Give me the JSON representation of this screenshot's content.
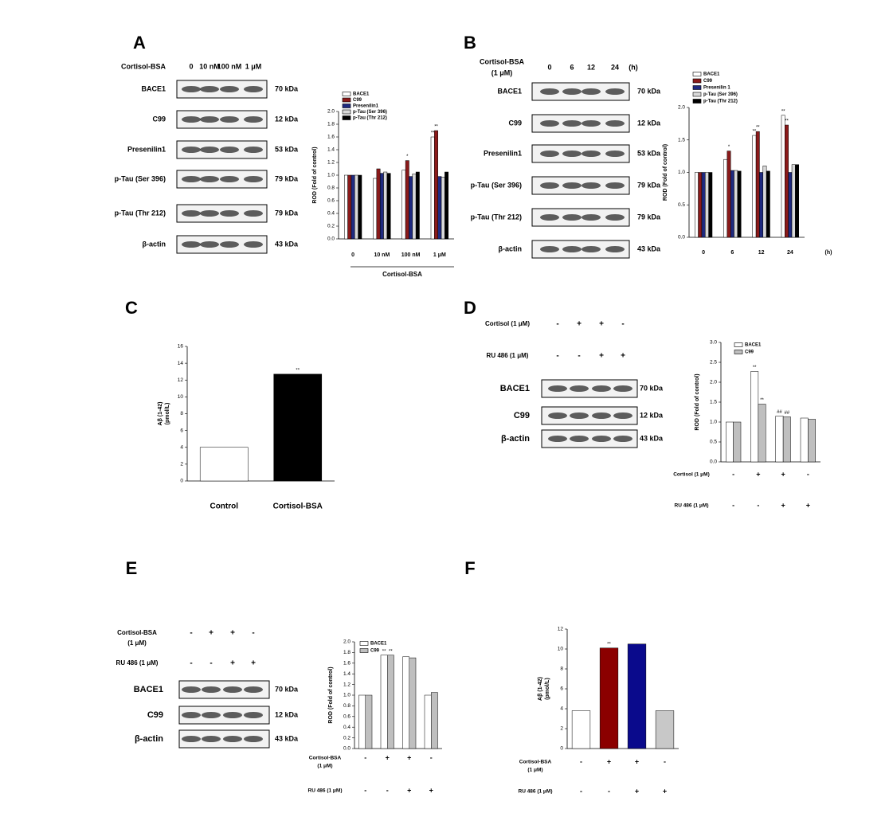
{
  "panel_labels": [
    "A",
    "B",
    "C",
    "D",
    "E",
    "F"
  ],
  "blots": [
    {
      "header": [
        "Cortisol-BSA"
      ],
      "lanes": [
        "0",
        "10 nM",
        "100 nM",
        "1 μM"
      ],
      "rows": [
        {
          "protein": "BACE1",
          "kda": "70 kDa"
        },
        {
          "protein": "C99",
          "kda": "12 kDa"
        },
        {
          "protein": "Presenilin1",
          "kda": "53 kDa"
        },
        {
          "protein": "p-Tau (Ser 396)",
          "kda": "79 kDa"
        },
        {
          "protein": "p-Tau (Thr 212)",
          "kda": "79 kDa"
        },
        {
          "protein": "β-actin",
          "kda": "43 kDa"
        }
      ]
    },
    {
      "header": [
        "Cortisol-BSA",
        "(1 μM)"
      ],
      "lanes": [
        "0",
        "6",
        "12",
        "24"
      ],
      "unit": "(h)",
      "rows": [
        {
          "protein": "BACE1",
          "kda": "70 kDa"
        },
        {
          "protein": "C99",
          "kda": "12 kDa"
        },
        {
          "protein": "Presenilin1",
          "kda": "53 kDa"
        },
        {
          "protein": "p-Tau (Ser 396)",
          "kda": "79 kDa"
        },
        {
          "protein": "p-Tau (Thr 212)",
          "kda": "79 kDa"
        },
        {
          "protein": "β-actin",
          "kda": "43 kDa"
        }
      ]
    },
    {
      "conditions": [
        {
          "label": [
            "Cortisol (1 μM)"
          ],
          "signs": [
            "-",
            "+",
            "+",
            "-"
          ]
        },
        {
          "label": [
            "RU 486 (1 μM)"
          ],
          "signs": [
            "-",
            "-",
            "+",
            "+"
          ]
        }
      ],
      "rows": [
        {
          "protein": "BACE1",
          "kda": "70 kDa"
        },
        {
          "protein": "C99",
          "kda": "12 kDa"
        },
        {
          "protein": "β-actin",
          "kda": "43 kDa"
        }
      ]
    },
    {
      "conditions": [
        {
          "label": [
            "Cortisol-BSA",
            "(1 μM)"
          ],
          "signs": [
            "-",
            "+",
            "+",
            "-"
          ]
        },
        {
          "label": [
            "RU 486 (1 μM)"
          ],
          "signs": [
            "-",
            "-",
            "+",
            "+"
          ]
        }
      ],
      "rows": [
        {
          "protein": "BACE1",
          "kda": "70 kDa"
        },
        {
          "protein": "C99",
          "kda": "12 kDa"
        },
        {
          "protein": "β-actin",
          "kda": "43 kDa"
        }
      ]
    }
  ],
  "chart_data": [
    {
      "type": "bar",
      "y_label": [
        "ROD (Fold of control)"
      ],
      "x_label": "Cortisol-BSA",
      "categories": [
        "0",
        "10 nM",
        "100 nM",
        "1 μM"
      ],
      "ylim": [
        0,
        2.0
      ],
      "yticks": [
        {
          "value": 0,
          "label": "0.0"
        },
        0.2,
        0.4,
        0.6,
        0.8,
        {
          "value": 1,
          "label": "1.0"
        },
        1.2,
        1.4,
        1.6,
        1.8,
        {
          "value": 2,
          "label": "2.0"
        }
      ],
      "series": [
        {
          "name": "BACE1",
          "color": "#ffffff",
          "values": [
            1.0,
            0.95,
            1.08,
            1.6
          ],
          "significance": [
            null,
            null,
            null,
            "**"
          ]
        },
        {
          "name": "C99",
          "color": "#8b1a1a",
          "values": [
            1.0,
            1.1,
            1.23,
            1.7
          ],
          "significance": [
            null,
            null,
            "*",
            "**"
          ]
        },
        {
          "name": "Presenilin1",
          "color": "#1f2a80",
          "values": [
            1.0,
            1.03,
            0.98,
            0.98
          ],
          "significance": [
            null,
            null,
            null,
            null
          ]
        },
        {
          "name": "p-Tau (Ser 396)",
          "color": "#d9d9d9",
          "values": [
            1.0,
            1.05,
            1.02,
            0.97
          ],
          "significance": [
            null,
            null,
            null,
            null
          ]
        },
        {
          "name": "p-Tau (Thr 212)",
          "color": "#000000",
          "values": [
            1.0,
            1.03,
            1.05,
            1.05
          ],
          "significance": [
            null,
            null,
            null,
            null
          ]
        }
      ]
    },
    {
      "type": "bar",
      "y_label": [
        "ROD (Fold of control)"
      ],
      "x_unit": "(h)",
      "categories": [
        "0",
        "6",
        "12",
        "24"
      ],
      "ylim": [
        0,
        2.0
      ],
      "yticks": [
        {
          "value": 0,
          "label": "0.0"
        },
        0.5,
        {
          "value": 1,
          "label": "1.0"
        },
        1.5,
        {
          "value": 2,
          "label": "2.0"
        }
      ],
      "series": [
        {
          "name": "BACE1",
          "color": "#ffffff",
          "values": [
            1.0,
            1.2,
            1.57,
            1.88
          ],
          "significance": [
            null,
            null,
            "**",
            "**"
          ]
        },
        {
          "name": "C99",
          "color": "#8b1a1a",
          "values": [
            1.0,
            1.33,
            1.63,
            1.73
          ],
          "significance": [
            null,
            "*",
            "**",
            "**"
          ]
        },
        {
          "name": "Presenilin 1",
          "color": "#1f2a80",
          "values": [
            1.0,
            1.03,
            1.0,
            1.0
          ],
          "significance": [
            null,
            null,
            null,
            null
          ]
        },
        {
          "name": "p-Tau (Ser 396)",
          "color": "#d9d9d9",
          "values": [
            1.0,
            1.03,
            1.1,
            1.12
          ],
          "significance": [
            null,
            null,
            null,
            null
          ]
        },
        {
          "name": "p-Tau (Thr 212)",
          "color": "#000000",
          "values": [
            1.0,
            1.02,
            1.02,
            1.12
          ],
          "significance": [
            null,
            null,
            null,
            null
          ]
        }
      ]
    },
    {
      "type": "bar",
      "y_label": [
        "Aβ (1-42)",
        "(pmol/L)"
      ],
      "categories": [
        "Control",
        "Cortisol-BSA"
      ],
      "values": [
        4.0,
        12.7
      ],
      "colors": [
        "#ffffff",
        "#000000"
      ],
      "significance": [
        null,
        "**"
      ],
      "ylim": [
        0,
        16
      ],
      "yticks": [
        0,
        2,
        4,
        6,
        8,
        10,
        12,
        14,
        16
      ]
    },
    {
      "type": "bar",
      "y_label": [
        "ROD (Fold of control)"
      ],
      "conditions": [
        {
          "label": [
            "Cortisol (1 μM)"
          ],
          "signs": [
            "-",
            "+",
            "+",
            "-"
          ]
        },
        {
          "label": [
            "RU 486 (1 μM)"
          ],
          "signs": [
            "-",
            "-",
            "+",
            "+"
          ]
        }
      ],
      "ylim": [
        0,
        3.0
      ],
      "yticks": [
        {
          "value": 0,
          "label": "0.0"
        },
        0.5,
        {
          "value": 1,
          "label": "1.0"
        },
        1.5,
        {
          "value": 2,
          "label": "2.0"
        },
        2.5,
        {
          "value": 3,
          "label": "3.0"
        }
      ],
      "series": [
        {
          "name": "BACE1",
          "color": "#ffffff",
          "values": [
            1.0,
            2.27,
            1.15,
            1.1
          ],
          "significance": [
            null,
            "**",
            "##",
            null
          ]
        },
        {
          "name": "C99",
          "color": "#bfbfbf",
          "values": [
            1.0,
            1.45,
            1.13,
            1.07
          ],
          "significance": [
            null,
            "**",
            "##",
            null
          ]
        }
      ]
    },
    {
      "type": "bar",
      "y_label": [
        "ROD (Fold of control)"
      ],
      "conditions": [
        {
          "label": [
            "Cortisol-BSA",
            "(1 μM)"
          ],
          "signs": [
            "-",
            "+",
            "+",
            "-"
          ]
        },
        {
          "label": [
            "RU 486 (1 μM)"
          ],
          "signs": [
            "-",
            "-",
            "+",
            "+"
          ]
        }
      ],
      "ylim": [
        0,
        2.0
      ],
      "yticks": [
        {
          "value": 0,
          "label": "0.0"
        },
        0.2,
        0.4,
        0.6,
        0.8,
        {
          "value": 1,
          "label": "1.0"
        },
        1.2,
        1.4,
        1.6,
        1.8,
        {
          "value": 2,
          "label": "2.0"
        }
      ],
      "series": [
        {
          "name": "BACE1",
          "color": "#ffffff",
          "values": [
            1.0,
            1.75,
            1.72,
            1.0
          ],
          "significance": [
            null,
            "**",
            null,
            null
          ]
        },
        {
          "name": "C99",
          "color": "#bfbfbf",
          "values": [
            1.0,
            1.75,
            1.7,
            1.05
          ],
          "significance": [
            null,
            "**",
            null,
            null
          ]
        }
      ]
    },
    {
      "type": "bar",
      "y_label": [
        "Aβ (1-42)",
        "(pmol/L)"
      ],
      "conditions": [
        {
          "label": [
            "Cortisol-BSA",
            "(1 μM)"
          ],
          "signs": [
            "-",
            "+",
            "+",
            "-"
          ]
        },
        {
          "label": [
            "RU 486 (1 μM)"
          ],
          "signs": [
            "-",
            "-",
            "+",
            "+"
          ]
        }
      ],
      "values": [
        3.8,
        10.1,
        10.5,
        3.8
      ],
      "colors": [
        "#ffffff",
        "#8b0000",
        "#0a0a8c",
        "#c8c8c8"
      ],
      "significance": [
        null,
        "**",
        null,
        null
      ],
      "ylim": [
        0,
        12
      ],
      "yticks": [
        0,
        2,
        4,
        6,
        8,
        10,
        12
      ]
    }
  ]
}
